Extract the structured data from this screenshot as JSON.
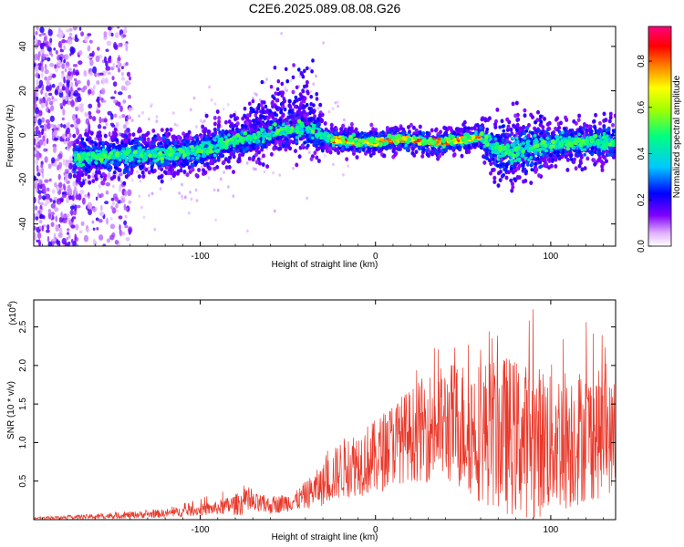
{
  "chart_data": [
    {
      "type": "heatmap",
      "title": "C2E6.2025.089.08.08.G26",
      "xlabel": "Height of straight line (km)",
      "ylabel": "Frequency (Hz)",
      "xlim": [
        -195,
        137
      ],
      "ylim": [
        -50,
        49
      ],
      "xticks": [
        -100,
        0,
        100
      ],
      "yticks": [
        -40,
        -20,
        0,
        20,
        40
      ],
      "colorbar": {
        "label": "Normalized spectral amplitude",
        "range": [
          0.0,
          0.95
        ],
        "ticks": [
          "0.0",
          "0.2",
          "0.4",
          "0.6",
          "0.8"
        ],
        "tick_values": [
          0.0,
          0.2,
          0.4,
          0.6,
          0.8
        ],
        "colors": [
          "#ffffff",
          "#e0b0ff",
          "#8000ff",
          "#0000ff",
          "#00c8ff",
          "#00ff80",
          "#a0ff00",
          "#ffff00",
          "#ff8000",
          "#ff0000",
          "#ff0080"
        ]
      },
      "centerline": {
        "x": [
          -170,
          -140,
          -110,
          -90,
          -70,
          -55,
          -45,
          -40,
          -35,
          -30,
          -25,
          -15,
          0,
          10,
          20,
          30,
          40,
          60,
          70,
          80,
          90,
          100,
          115,
          137
        ],
        "freq": [
          -10,
          -9,
          -8,
          -5,
          0,
          3,
          4,
          3,
          2,
          0,
          -2,
          -3,
          -3,
          -2,
          -2,
          -3,
          -3,
          -1,
          -6,
          -8,
          -5,
          -4,
          -3,
          -3
        ]
      }
    },
    {
      "type": "line",
      "xlabel": "Height of straight line (km)",
      "ylabel": "SNR (10 * v/v)",
      "scale_label": "(x10",
      "scale_exponent": "4",
      "ylabel_scale": "(x10^4)",
      "xlim": [
        -195,
        137
      ],
      "ylim": [
        0,
        2.85
      ],
      "xticks": [
        -100,
        0,
        100
      ],
      "yticks": [
        0.5,
        1.0,
        1.5,
        2.0,
        2.5
      ],
      "ytick_labels": [
        "0.5",
        "1.0",
        "1.5",
        "2.0",
        "2.5"
      ],
      "color": "#e8392b",
      "envelope": {
        "x": [
          -195,
          -160,
          -120,
          -90,
          -75,
          -60,
          -45,
          -30,
          -20,
          -10,
          0,
          10,
          20,
          30,
          45,
          60,
          75,
          90,
          100,
          110,
          120,
          130,
          137
        ],
        "mean": [
          0.02,
          0.04,
          0.08,
          0.15,
          0.22,
          0.18,
          0.25,
          0.45,
          0.65,
          0.75,
          0.8,
          1.0,
          1.1,
          1.2,
          1.25,
          1.15,
          1.1,
          1.0,
          1.05,
          1.05,
          1.1,
          1.1,
          1.05
        ],
        "amp": [
          0.01,
          0.03,
          0.05,
          0.08,
          0.15,
          0.1,
          0.12,
          0.25,
          0.35,
          0.4,
          0.45,
          0.5,
          0.55,
          0.65,
          0.75,
          0.85,
          0.95,
          0.9,
          0.9,
          0.85,
          0.8,
          0.75,
          0.6
        ],
        "peak": [
          0.03,
          0.08,
          0.15,
          0.35,
          0.45,
          0.3,
          0.4,
          0.85,
          1.05,
          1.3,
          1.35,
          1.55,
          1.75,
          2.3,
          2.25,
          2.5,
          2.75,
          2.85,
          2.5,
          2.6,
          2.6,
          2.4,
          1.9
        ]
      }
    }
  ]
}
